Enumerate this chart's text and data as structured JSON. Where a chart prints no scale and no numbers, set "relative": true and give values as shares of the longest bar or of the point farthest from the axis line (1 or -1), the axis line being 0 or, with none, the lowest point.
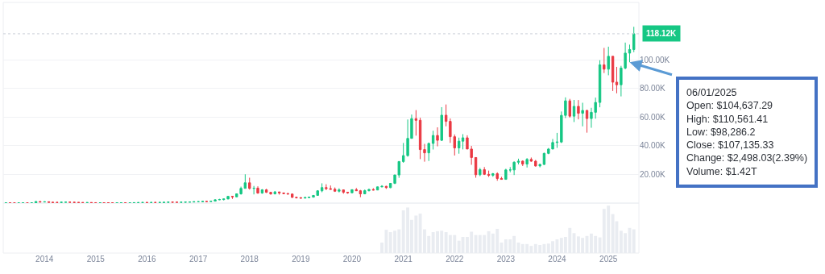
{
  "chart_data": [
    {
      "type": "candlestick",
      "colors": [
        "#16c784",
        "#ea3943",
        "#ea3943",
        "#16c784",
        "#16c784",
        "#ea3943",
        "#16c784",
        "#16c784",
        "#ea3943",
        "#16c784",
        "#ea3943",
        "#ea3943",
        "#ea3943",
        "#16c784",
        "#16c784",
        "#ea3943",
        "#ea3943",
        "#ea3943",
        "#ea3943",
        "#16c784",
        "#ea3943",
        "#ea3943",
        "#16c784",
        "#ea3943",
        "#ea3943",
        "#ea3943",
        "#16c784",
        "#16c784",
        "#ea3943",
        "#16c784",
        "#16c784",
        "#16c784",
        "#16c784",
        "#ea3943",
        "#16c784",
        "#ea3943",
        "#16c784",
        "#16c784",
        "#16c784",
        "#ea3943",
        "#ea3943",
        "#16c784",
        "#16c784",
        "#16c784",
        "#16c784",
        "#16c784",
        "#16c784",
        "#ea3943",
        "#16c784",
        "#16c784",
        "#16c784",
        "#16c784",
        "#16c784",
        "#ea3943",
        "#16c784",
        "#16c784",
        "#16c784",
        "#ea3943",
        "#16c784",
        "#ea3943",
        "#16c784",
        "#ea3943",
        "#ea3943",
        "#16c784",
        "#ea3943",
        "#ea3943",
        "#ea3943",
        "#ea3943",
        "#ea3943",
        "#ea3943",
        "#16c784",
        "#16c784",
        "#16c784",
        "#16c784",
        "#16c784",
        "#ea3943",
        "#ea3943",
        "#ea3943",
        "#16c784",
        "#ea3943",
        "#ea3943",
        "#16c784",
        "#ea3943",
        "#ea3943",
        "#16c784",
        "#16c784",
        "#ea3943",
        "#16c784",
        "#16c784",
        "#ea3943",
        "#16c784",
        "#16c784",
        "#16c784",
        "#16c784",
        "#16c784",
        "#16c784",
        "#ea3943",
        "#ea3943",
        "#ea3943",
        "#16c784",
        "#16c784",
        "#ea3943",
        "#16c784",
        "#ea3943",
        "#ea3943",
        "#ea3943",
        "#16c784",
        "#16c784",
        "#ea3943",
        "#ea3943",
        "#ea3943",
        "#16c784",
        "#ea3943",
        "#ea3943",
        "#16c784",
        "#ea3943",
        "#ea3943",
        "#16c784",
        "#16c784",
        "#16c784",
        "#16c784",
        "#ea3943",
        "#16c784",
        "#ea3943",
        "#ea3943",
        "#16c784",
        "#16c784",
        "#16c784",
        "#16c784",
        "#16c784",
        "#16c784",
        "#16c784",
        "#ea3943",
        "#16c784",
        "#ea3943",
        "#16c784",
        "#ea3943",
        "#16c784",
        "#16c784",
        "#16c784",
        "#ea3943",
        "#16c784",
        "#ea3943",
        "#ea3943",
        "#16c784",
        "#16c784",
        "#16c784",
        "#16c784"
      ],
      "x": [
        "2013-04",
        "2013-05",
        "2013-06",
        "2013-07",
        "2013-08",
        "2013-09",
        "2013-10",
        "2013-11",
        "2013-12",
        "2014-01",
        "2014-02",
        "2014-03",
        "2014-04",
        "2014-05",
        "2014-06",
        "2014-07",
        "2014-08",
        "2014-09",
        "2014-10",
        "2014-11",
        "2014-12",
        "2015-01",
        "2015-02",
        "2015-03",
        "2015-04",
        "2015-05",
        "2015-06",
        "2015-07",
        "2015-08",
        "2015-09",
        "2015-10",
        "2015-11",
        "2015-12",
        "2016-01",
        "2016-02",
        "2016-03",
        "2016-04",
        "2016-05",
        "2016-06",
        "2016-07",
        "2016-08",
        "2016-09",
        "2016-10",
        "2016-11",
        "2016-12",
        "2017-01",
        "2017-02",
        "2017-03",
        "2017-04",
        "2017-05",
        "2017-06",
        "2017-07",
        "2017-08",
        "2017-09",
        "2017-10",
        "2017-11",
        "2017-12",
        "2018-01",
        "2018-02",
        "2018-03",
        "2018-04",
        "2018-05",
        "2018-06",
        "2018-07",
        "2018-08",
        "2018-09",
        "2018-10",
        "2018-11",
        "2018-12",
        "2019-01",
        "2019-02",
        "2019-03",
        "2019-04",
        "2019-05",
        "2019-06",
        "2019-07",
        "2019-08",
        "2019-09",
        "2019-10",
        "2019-11",
        "2019-12",
        "2020-01",
        "2020-02",
        "2020-03",
        "2020-04",
        "2020-05",
        "2020-06",
        "2020-07",
        "2020-08",
        "2020-09",
        "2020-10",
        "2020-11",
        "2020-12",
        "2021-01",
        "2021-02",
        "2021-03",
        "2021-04",
        "2021-05",
        "2021-06",
        "2021-07",
        "2021-08",
        "2021-09",
        "2021-10",
        "2021-11",
        "2021-12",
        "2022-01",
        "2022-02",
        "2022-03",
        "2022-04",
        "2022-05",
        "2022-06",
        "2022-07",
        "2022-08",
        "2022-09",
        "2022-10",
        "2022-11",
        "2022-12",
        "2023-01",
        "2023-02",
        "2023-03",
        "2023-04",
        "2023-05",
        "2023-06",
        "2023-07",
        "2023-08",
        "2023-09",
        "2023-10",
        "2023-11",
        "2023-12",
        "2024-01",
        "2024-02",
        "2024-03",
        "2024-04",
        "2024-05",
        "2024-06",
        "2024-07",
        "2024-08",
        "2024-09",
        "2024-10",
        "2024-11",
        "2024-12",
        "2025-01",
        "2025-02",
        "2025-03",
        "2025-04",
        "2025-05",
        "2025-06",
        "2025-07"
      ],
      "ohlc": [
        [
          93,
          266,
          50,
          139
        ],
        [
          139,
          140,
          79,
          129
        ],
        [
          129,
          129,
          88,
          97
        ],
        [
          97,
          111,
          65,
          106
        ],
        [
          106,
          136,
          103,
          135
        ],
        [
          135,
          140,
          110,
          133
        ],
        [
          133,
          215,
          110,
          204
        ],
        [
          204,
          1156,
          204,
          1129
        ],
        [
          1129,
          1156,
          522,
          755
        ],
        [
          755,
          1000,
          755,
          938
        ],
        [
          938,
          938,
          450,
          549
        ],
        [
          549,
          700,
          450,
          457
        ],
        [
          457,
          540,
          340,
          448
        ],
        [
          448,
          631,
          420,
          631
        ],
        [
          631,
          680,
          550,
          641
        ],
        [
          641,
          650,
          570,
          587
        ],
        [
          587,
          600,
          430,
          477
        ],
        [
          477,
          490,
          360,
          387
        ],
        [
          387,
          420,
          275,
          338
        ],
        [
          338,
          460,
          320,
          378
        ],
        [
          378,
          380,
          310,
          320
        ],
        [
          320,
          320,
          170,
          218
        ],
        [
          218,
          265,
          210,
          254
        ],
        [
          254,
          300,
          235,
          244
        ],
        [
          244,
          255,
          210,
          236
        ],
        [
          236,
          248,
          225,
          230
        ],
        [
          230,
          265,
          220,
          263
        ],
        [
          263,
          315,
          255,
          285
        ],
        [
          285,
          285,
          200,
          231
        ],
        [
          231,
          245,
          225,
          236
        ],
        [
          236,
          330,
          236,
          314
        ],
        [
          314,
          500,
          300,
          378
        ],
        [
          378,
          465,
          355,
          430
        ],
        [
          430,
          460,
          355,
          369
        ],
        [
          369,
          440,
          365,
          437
        ],
        [
          437,
          440,
          410,
          416
        ],
        [
          416,
          465,
          415,
          448
        ],
        [
          448,
          540,
          440,
          531
        ],
        [
          531,
          780,
          530,
          673
        ],
        [
          673,
          680,
          470,
          624
        ],
        [
          624,
          630,
          535,
          575
        ],
        [
          575,
          610,
          570,
          610
        ],
        [
          610,
          720,
          605,
          698
        ],
        [
          698,
          750,
          690,
          742
        ],
        [
          742,
          980,
          740,
          964
        ],
        [
          964,
          1190,
          750,
          970
        ],
        [
          970,
          1200,
          920,
          1190
        ],
        [
          1190,
          1290,
          900,
          1071
        ],
        [
          1071,
          1350,
          1060,
          1348
        ],
        [
          1348,
          2760,
          1340,
          2286
        ],
        [
          2286,
          2980,
          2120,
          2480
        ],
        [
          2480,
          2920,
          1840,
          2875
        ],
        [
          2875,
          4730,
          2690,
          4703
        ],
        [
          4703,
          4980,
          2950,
          4338
        ],
        [
          4338,
          6470,
          4170,
          6468
        ],
        [
          6468,
          11500,
          5860,
          10233
        ],
        [
          10233,
          20089,
          10233,
          14157
        ],
        [
          14157,
          17712,
          9400,
          10221
        ],
        [
          10221,
          11960,
          6048,
          10397
        ],
        [
          10397,
          11710,
          6530,
          6973
        ],
        [
          6973,
          9750,
          6530,
          9240
        ],
        [
          9240,
          9960,
          7090,
          7494
        ],
        [
          7494,
          7760,
          5830,
          6404
        ],
        [
          6404,
          8470,
          6110,
          7780
        ],
        [
          7780,
          7850,
          5890,
          7037
        ],
        [
          7037,
          7410,
          6200,
          6625
        ],
        [
          6625,
          7090,
          6140,
          6318
        ],
        [
          6318,
          6550,
          3560,
          4017
        ],
        [
          4017,
          4310,
          3180,
          3742
        ],
        [
          3742,
          4110,
          3400,
          3457
        ],
        [
          3457,
          4210,
          3400,
          3854
        ],
        [
          3854,
          4120,
          3700,
          4105
        ],
        [
          4105,
          5640,
          4080,
          5351
        ],
        [
          5351,
          9010,
          5330,
          8574
        ],
        [
          8574,
          13796,
          7560,
          10817
        ],
        [
          10817,
          13130,
          9070,
          10085
        ],
        [
          10085,
          12270,
          9500,
          9630
        ],
        [
          9630,
          10900,
          7800,
          8293
        ],
        [
          8293,
          10350,
          7420,
          9199
        ],
        [
          9199,
          9520,
          6530,
          7569
        ],
        [
          7569,
          7750,
          6540,
          7193
        ],
        [
          7193,
          9550,
          6910,
          9350
        ],
        [
          9350,
          10500,
          8470,
          8599
        ],
        [
          8599,
          9170,
          4106,
          6438
        ],
        [
          6438,
          9440,
          6160,
          8658
        ],
        [
          8658,
          10070,
          8120,
          9461
        ],
        [
          9461,
          10380,
          8830,
          9138
        ],
        [
          9138,
          11430,
          8980,
          11323
        ],
        [
          11323,
          12460,
          11010,
          11680
        ],
        [
          11680,
          12070,
          9920,
          10784
        ],
        [
          10784,
          14030,
          10420,
          13781
        ],
        [
          13781,
          19750,
          13240,
          19625
        ],
        [
          19625,
          29300,
          17620,
          29002
        ],
        [
          29002,
          41946,
          28130,
          33114
        ],
        [
          33114,
          58330,
          32380,
          45137
        ],
        [
          45137,
          61788,
          45000,
          58919
        ],
        [
          58919,
          64863,
          47044,
          57750
        ],
        [
          57750,
          59519,
          30681,
          37332
        ],
        [
          37332,
          41300,
          28893,
          35040
        ],
        [
          35040,
          42230,
          29360,
          41626
        ],
        [
          41626,
          50482,
          37390,
          47166
        ],
        [
          47166,
          52850,
          39600,
          43791
        ],
        [
          43791,
          66930,
          43290,
          61318
        ],
        [
          61318,
          68789,
          53570,
          57005
        ],
        [
          57005,
          59040,
          42000,
          46306
        ],
        [
          46306,
          47880,
          33184,
          38483
        ],
        [
          38483,
          45661,
          34460,
          43194
        ],
        [
          43194,
          48086,
          37450,
          45538
        ],
        [
          45538,
          47310,
          37700,
          37714
        ],
        [
          37714,
          39900,
          26700,
          31792
        ],
        [
          31792,
          31960,
          17708,
          19785
        ],
        [
          19785,
          24570,
          18780,
          23336
        ],
        [
          23336,
          25140,
          19600,
          20050
        ],
        [
          20050,
          22670,
          18200,
          19431
        ],
        [
          19431,
          20990,
          18320,
          20495
        ],
        [
          20495,
          21450,
          15599,
          17168
        ],
        [
          17168,
          18320,
          16400,
          16547
        ],
        [
          16547,
          23950,
          16520,
          23139
        ],
        [
          23139,
          25130,
          21480,
          23147
        ],
        [
          23147,
          29160,
          19570,
          28478
        ],
        [
          28478,
          30966,
          26970,
          29268
        ],
        [
          29268,
          29820,
          25870,
          27219
        ],
        [
          27219,
          31390,
          24800,
          30477
        ],
        [
          30477,
          31800,
          28860,
          29230
        ],
        [
          29230,
          30120,
          25410,
          25931
        ],
        [
          25931,
          27480,
          24930,
          26967
        ],
        [
          26967,
          35150,
          26560,
          34667
        ],
        [
          34667,
          38420,
          34100,
          37712
        ],
        [
          37712,
          44700,
          37620,
          42265
        ],
        [
          42265,
          48970,
          38520,
          42582
        ],
        [
          42582,
          63910,
          41880,
          61198
        ],
        [
          61198,
          73750,
          59320,
          71333
        ],
        [
          71333,
          72710,
          59570,
          60636
        ],
        [
          60636,
          71950,
          56550,
          67491
        ],
        [
          67491,
          71910,
          58400,
          62678
        ],
        [
          62678,
          70000,
          53550,
          64619
        ],
        [
          64619,
          65100,
          49121,
          58969
        ],
        [
          58969,
          66480,
          52550,
          63329
        ],
        [
          63329,
          73580,
          58900,
          70215
        ],
        [
          70215,
          99655,
          66830,
          96449
        ],
        [
          96449,
          108268,
          90740,
          93429
        ],
        [
          93429,
          109115,
          89160,
          102405
        ],
        [
          102405,
          102500,
          78198,
          84373
        ],
        [
          84373,
          95040,
          76606,
          82548
        ],
        [
          82548,
          95760,
          74436,
          94207
        ],
        [
          94207,
          111970,
          93340,
          104638
        ],
        [
          104637.29,
          110561.41,
          98286.2,
          107135.33
        ],
        [
          107135.33,
          123000,
          105300,
          118120
        ]
      ],
      "xlim": [
        "2013-03-13",
        "2025-08-06"
      ],
      "ylim": [
        0,
        140000
      ],
      "yticks": [
        {
          "value": 20000,
          "label": "20.00K"
        },
        {
          "value": 40000,
          "label": "40.00K"
        },
        {
          "value": 60000,
          "label": "60.00K"
        },
        {
          "value": 80000,
          "label": "80.00K"
        },
        {
          "value": 100000,
          "label": "100.00K"
        }
      ],
      "grid": "y",
      "tick_labels": "y",
      "ref_lines": [
        {
          "axis": "y",
          "value": 118120,
          "label": "118.12K",
          "color": "#c9ced8",
          "line_style": "dotted"
        }
      ],
      "annotations": [
        "06/01/2025\nOpen: $104,637.29\nHigh: $110,561.41\nLow: $98,286.2\nClose: $107,135.33\nChange: $2,498.03(2.39%)\nVolume: $1.42T"
      ]
    },
    {
      "type": "bar",
      "relative": true,
      "color": "#e9ecf1",
      "tick_labels": "x",
      "x": [
        "2020-08",
        "2020-09",
        "2020-10",
        "2020-11",
        "2020-12",
        "2021-01",
        "2021-02",
        "2021-03",
        "2021-04",
        "2021-05",
        "2021-06",
        "2021-07",
        "2021-08",
        "2021-09",
        "2021-10",
        "2021-11",
        "2021-12",
        "2022-01",
        "2022-02",
        "2022-03",
        "2022-04",
        "2022-05",
        "2022-06",
        "2022-07",
        "2022-08",
        "2022-09",
        "2022-10",
        "2022-11",
        "2022-12",
        "2023-01",
        "2023-02",
        "2023-03",
        "2023-04",
        "2023-05",
        "2023-06",
        "2023-07",
        "2023-08",
        "2023-09",
        "2023-10",
        "2023-11",
        "2023-12",
        "2024-01",
        "2024-02",
        "2024-03",
        "2024-04",
        "2024-05",
        "2024-06",
        "2024-07",
        "2024-08",
        "2024-09",
        "2024-10",
        "2024-11",
        "2024-12",
        "2025-01",
        "2025-02",
        "2025-03",
        "2025-04",
        "2025-05",
        "2025-06",
        "2025-07"
      ],
      "values": [
        0.22,
        0.49,
        0.44,
        0.47,
        0.5,
        0.9,
        0.96,
        0.7,
        0.79,
        0.83,
        0.5,
        0.36,
        0.44,
        0.46,
        0.47,
        0.44,
        0.38,
        0.38,
        0.26,
        0.34,
        0.34,
        0.45,
        0.38,
        0.38,
        0.38,
        0.46,
        0.41,
        0.51,
        0.22,
        0.29,
        0.29,
        0.36,
        0.22,
        0.19,
        0.19,
        0.15,
        0.19,
        0.17,
        0.19,
        0.2,
        0.25,
        0.29,
        0.32,
        0.34,
        0.53,
        0.42,
        0.35,
        0.32,
        0.36,
        0.41,
        0.36,
        0.33,
        0.93,
        1.0,
        0.82,
        0.67,
        0.47,
        0.42,
        0.53,
        0.5
      ],
      "xlim": [
        "2013-03-13",
        "2025-08-06"
      ],
      "xticks": [
        "2014",
        "2015",
        "2016",
        "2017",
        "2018",
        "2019",
        "2020",
        "2021",
        "2022",
        "2023",
        "2024",
        "2025"
      ]
    }
  ]
}
